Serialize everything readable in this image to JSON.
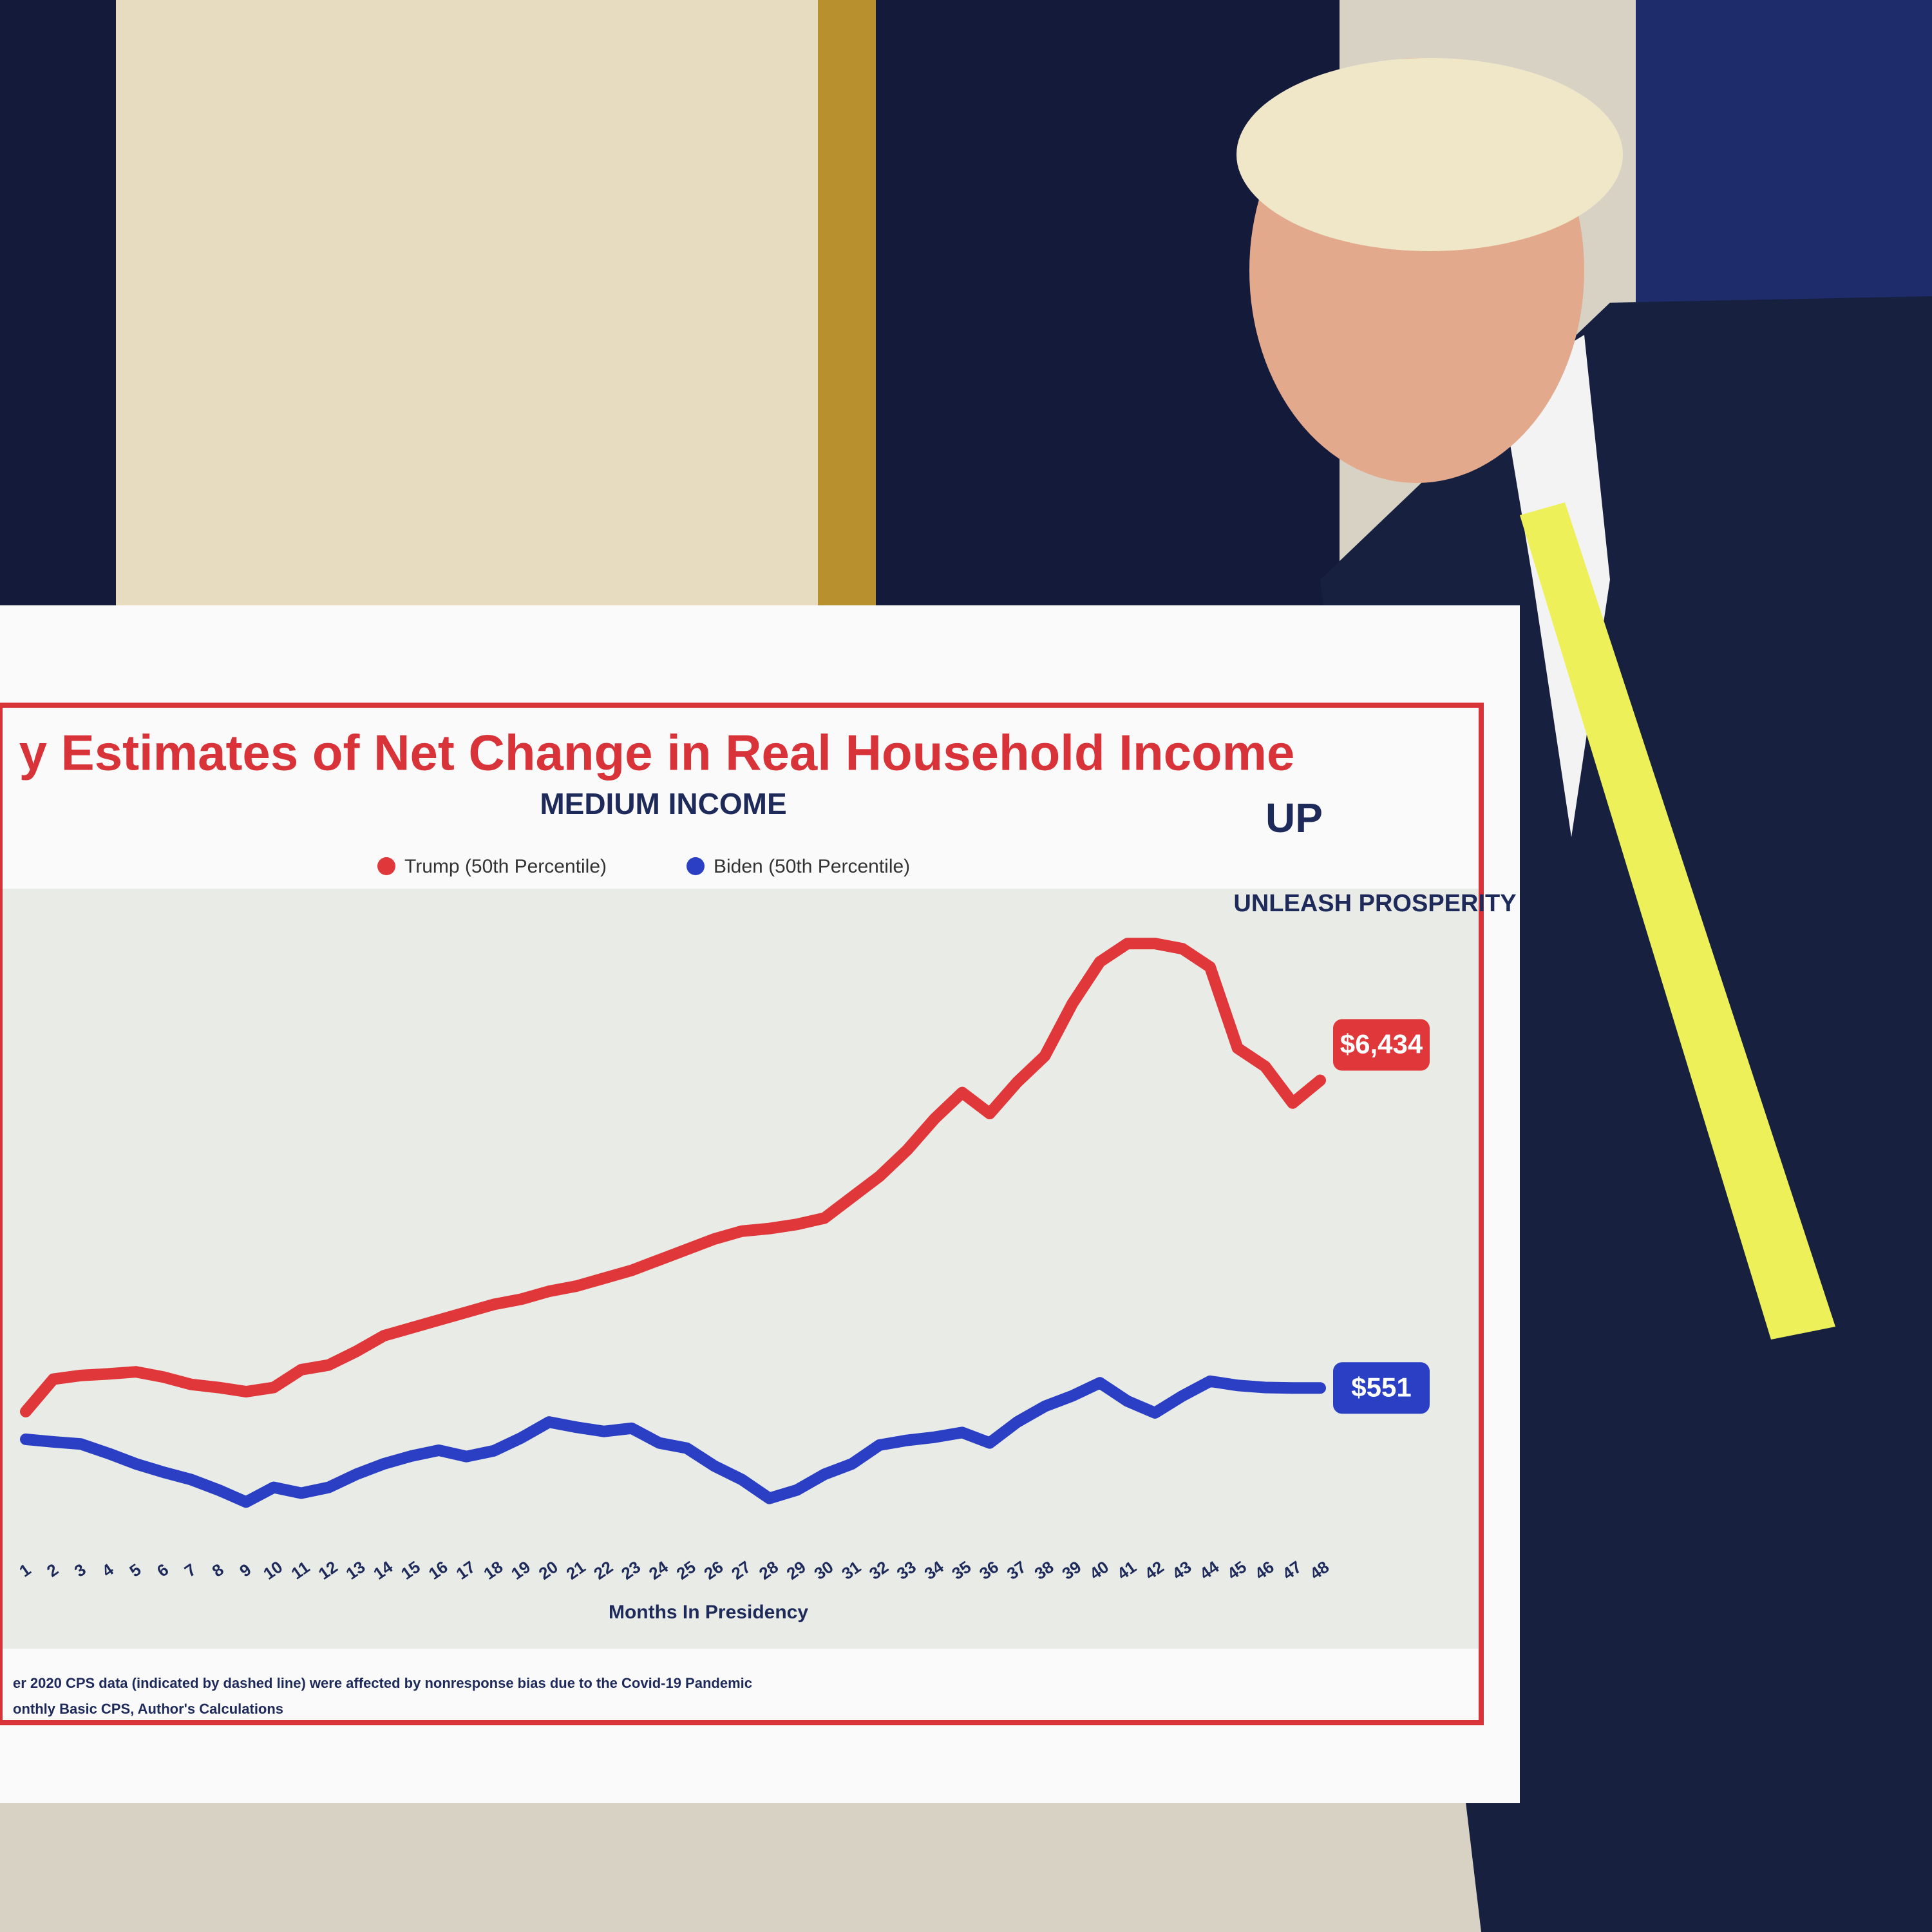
{
  "chart_data": {
    "type": "line",
    "title": "y Estimates of Net Change in Real Household Income",
    "subtitle": "MEDIUM INCOME",
    "logo": "UP",
    "brand": "UNLEASH PROSPERITY",
    "x_label": "Months In Presidency",
    "footnotes": [
      "er 2020 CPS data (indicated by dashed line) were affected by nonresponse bias due to the Covid-19 Pandemic",
      "onthly Basic CPS, Author's Calculations"
    ],
    "categories": [
      "1",
      "2",
      "3",
      "4",
      "5",
      "6",
      "7",
      "8",
      "9",
      "10",
      "11",
      "12",
      "13",
      "14",
      "15",
      "16",
      "17",
      "18",
      "19",
      "20",
      "21",
      "22",
      "23",
      "24",
      "25",
      "26",
      "27",
      "28",
      "29",
      "30",
      "31",
      "32",
      "33",
      "34",
      "35",
      "36",
      "37",
      "38",
      "39",
      "40",
      "41",
      "42",
      "43",
      "44",
      "45",
      "46",
      "47",
      "48"
    ],
    "ylim": [
      -2500,
      10000
    ],
    "legend": "top",
    "series": [
      {
        "name": "Trump (50th Percentile)",
        "color": "#e0373a",
        "values": [
          100,
          720,
          790,
          820,
          860,
          760,
          620,
          560,
          480,
          560,
          900,
          990,
          1250,
          1550,
          1700,
          1850,
          2000,
          2150,
          2250,
          2400,
          2500,
          2650,
          2800,
          3000,
          3200,
          3400,
          3550,
          3600,
          3680,
          3800,
          4200,
          4600,
          5100,
          5700,
          6200,
          5800,
          6400,
          6900,
          7900,
          8700,
          9050,
          9050,
          8950,
          8600,
          7050,
          6700,
          6000,
          6434
        ],
        "value_labels": [
          null,
          null,
          null,
          null,
          null,
          null,
          null,
          null,
          null,
          null,
          null,
          null,
          null,
          null,
          null,
          null,
          null,
          null,
          null,
          null,
          null,
          null,
          null,
          null,
          null,
          null,
          null,
          null,
          null,
          null,
          null,
          null,
          null,
          null,
          null,
          null,
          null,
          null,
          null,
          null,
          null,
          null,
          null,
          null,
          null,
          null,
          null,
          "$6,434"
        ]
      },
      {
        "name": "Biden (50th Percentile)",
        "color": "#2a3fc4",
        "values": [
          -430,
          -480,
          -520,
          -700,
          -900,
          -1060,
          -1200,
          -1400,
          -1630,
          -1350,
          -1460,
          -1350,
          -1100,
          -900,
          -750,
          -640,
          -760,
          -650,
          -400,
          -100,
          -200,
          -280,
          -220,
          -500,
          -600,
          -940,
          -1200,
          -1560,
          -1400,
          -1100,
          -900,
          -540,
          -450,
          -390,
          -300,
          -500,
          -100,
          200,
          400,
          650,
          300,
          75,
          400,
          680,
          600,
          560,
          551,
          551
        ],
        "value_labels": [
          null,
          null,
          null,
          null,
          null,
          null,
          null,
          null,
          null,
          null,
          null,
          null,
          null,
          null,
          null,
          null,
          null,
          null,
          null,
          null,
          null,
          null,
          null,
          null,
          null,
          null,
          null,
          null,
          null,
          null,
          null,
          null,
          null,
          null,
          null,
          null,
          null,
          null,
          null,
          null,
          null,
          null,
          null,
          null,
          null,
          null,
          null,
          "$551"
        ]
      }
    ]
  }
}
